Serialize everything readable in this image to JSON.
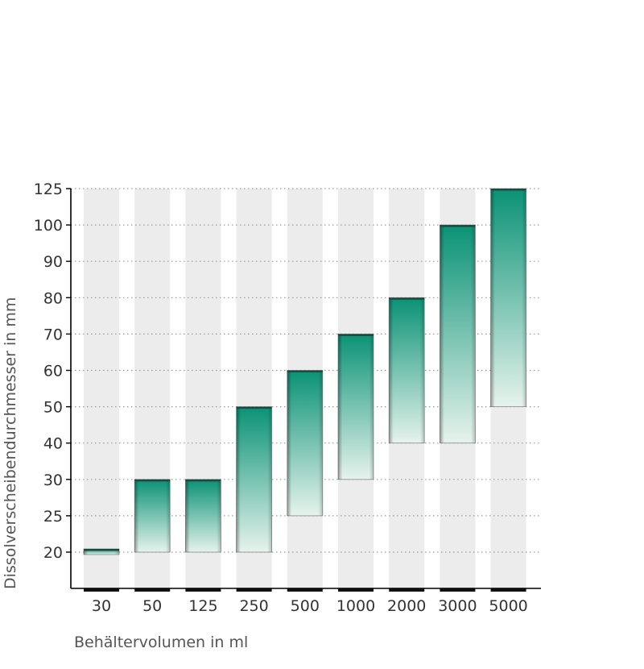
{
  "chart_data": {
    "type": "bar",
    "subtype": "floating-range",
    "title": "",
    "xlabel": "Behältervolumen in ml",
    "ylabel": "Dissolverscheibendurchmesser in mm",
    "y_ticks": [
      "20",
      "25",
      "30",
      "40",
      "50",
      "60",
      "70",
      "80",
      "90",
      "100",
      "125"
    ],
    "categories": [
      "30",
      "50",
      "125",
      "250",
      "500",
      "1000",
      "2000",
      "3000",
      "5000"
    ],
    "ranges": [
      {
        "category": "30",
        "low": "20",
        "high": "20"
      },
      {
        "category": "50",
        "low": "20",
        "high": "30"
      },
      {
        "category": "125",
        "low": "20",
        "high": "30"
      },
      {
        "category": "250",
        "low": "20",
        "high": "50"
      },
      {
        "category": "500",
        "low": "25",
        "high": "60"
      },
      {
        "category": "1000",
        "low": "30",
        "high": "70"
      },
      {
        "category": "2000",
        "low": "40",
        "high": "80"
      },
      {
        "category": "3000",
        "low": "40",
        "high": "100"
      },
      {
        "category": "5000",
        "low": "50",
        "high": "125"
      }
    ],
    "grid": "dotted horizontal",
    "colors": {
      "bar_top": "#0a9275",
      "bar_bottom": "#e6f3ec",
      "column_band": "#ececec",
      "grid": "#9a9a9a",
      "axis": "#000000",
      "text": "#333333"
    }
  }
}
